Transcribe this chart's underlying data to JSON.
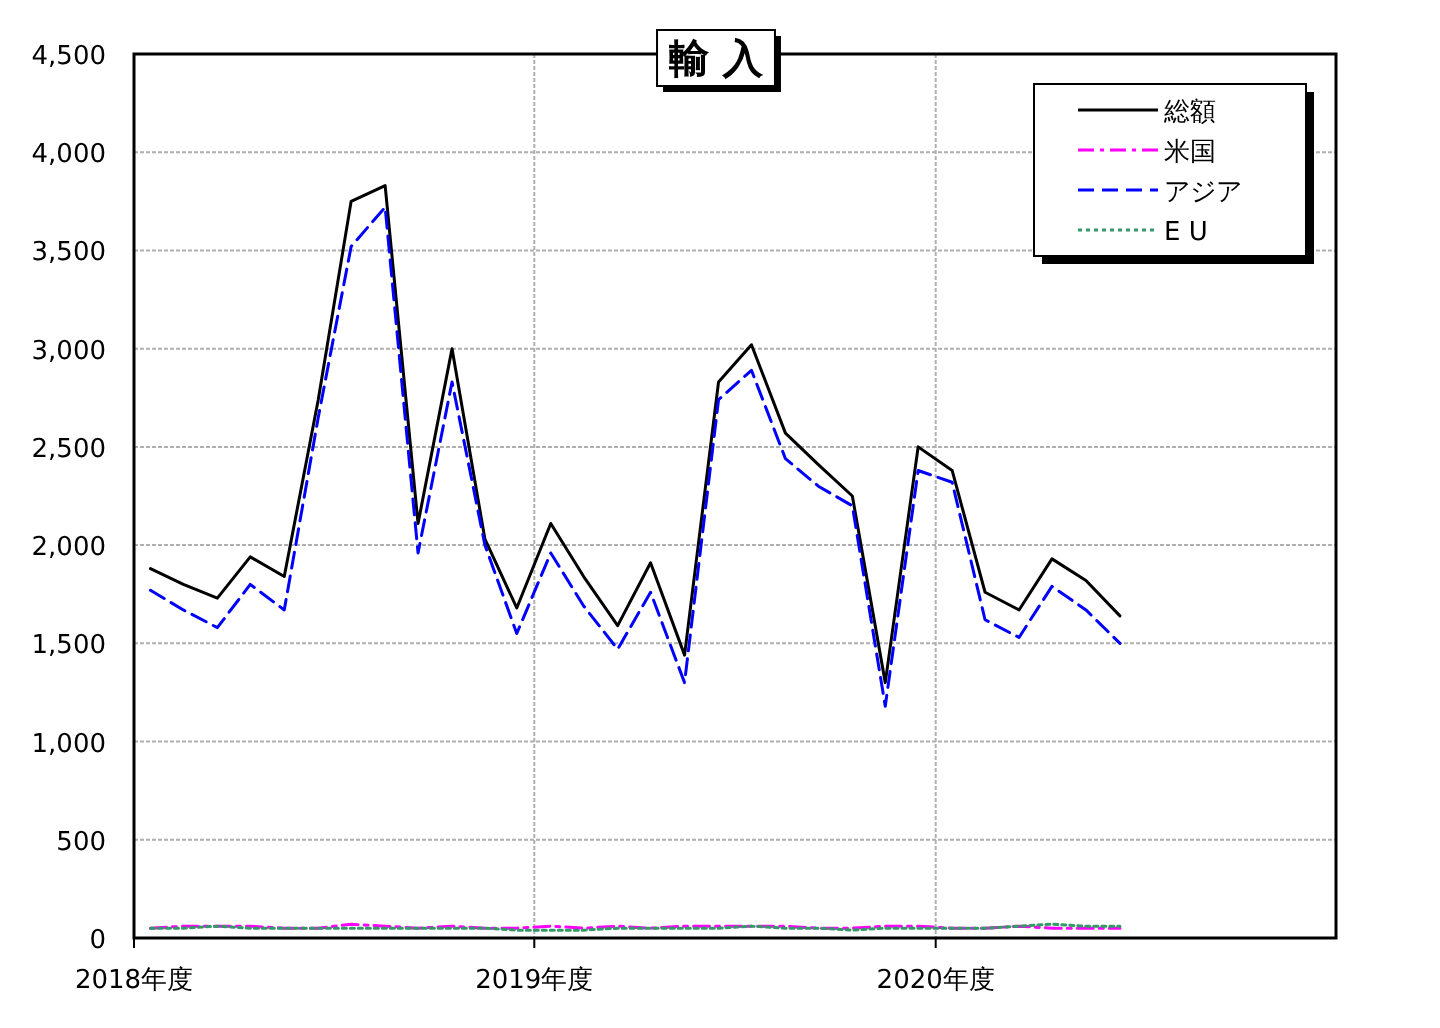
{
  "chart_data": {
    "type": "line",
    "title": "輸 入",
    "x": [
      "2018-04-16",
      "2018-05-16",
      "2018-06-16",
      "2018-07-16",
      "2018-08-16",
      "2018-09-16",
      "2018-10-16",
      "2018-11-16",
      "2018-12-16",
      "2019-01-16",
      "2019-02-15",
      "2019-03-16",
      "2019-04-16",
      "2019-05-16",
      "2019-06-16",
      "2019-07-16",
      "2019-08-16",
      "2019-09-16",
      "2019-10-16",
      "2019-11-16",
      "2019-12-16",
      "2020-01-16",
      "2020-02-15",
      "2020-03-16",
      "2020-04-16",
      "2020-05-16",
      "2020-06-16",
      "2020-07-16",
      "2020-08-16",
      "2020-09-16"
    ],
    "xlim": [
      "2018-04-01",
      "2021-04-01"
    ],
    "xticks": [
      {
        "value": "2018-04-01",
        "label": "2018年度"
      },
      {
        "value": "2019-04-01",
        "label": "2019年度"
      },
      {
        "value": "2020-04-01",
        "label": "2020年度"
      }
    ],
    "ylim": [
      0,
      4500
    ],
    "yticks": [
      0,
      500,
      {
        "value": 1000,
        "label": "1,000"
      },
      {
        "value": 1500,
        "label": "1,500"
      },
      {
        "value": 2000,
        "label": "2,000"
      },
      {
        "value": 2500,
        "label": "2,500"
      },
      {
        "value": 3000,
        "label": "3,000"
      },
      {
        "value": 3500,
        "label": "3,500"
      },
      {
        "value": 4000,
        "label": "4,000"
      },
      {
        "value": 4500,
        "label": "4,500"
      }
    ],
    "grid": true,
    "legend": "top right",
    "marker": "none",
    "series": [
      {
        "name": "総額",
        "color": "#000000",
        "line_style": "solid",
        "values": [
          1880,
          1800,
          1730,
          1940,
          1840,
          2740,
          3750,
          3830,
          2110,
          3000,
          2030,
          1680,
          2110,
          1840,
          1590,
          1910,
          1440,
          2830,
          3020,
          2570,
          2410,
          2250,
          1300,
          2500,
          2380,
          1760,
          1670,
          1930,
          1820,
          1640
        ]
      },
      {
        "name": "米国",
        "color": "#ff00ff",
        "line_style": "dashdot",
        "values": [
          50,
          60,
          60,
          60,
          50,
          50,
          70,
          60,
          50,
          60,
          50,
          50,
          60,
          50,
          60,
          50,
          60,
          60,
          60,
          60,
          50,
          50,
          60,
          60,
          50,
          50,
          60,
          50,
          50,
          50
        ]
      },
      {
        "name": "アジア",
        "color": "#0000ff",
        "line_style": "dashed",
        "values": [
          1770,
          1670,
          1580,
          1800,
          1670,
          2650,
          3520,
          3720,
          1960,
          2830,
          2000,
          1550,
          1960,
          1690,
          1470,
          1760,
          1300,
          2740,
          2890,
          2440,
          2300,
          2200,
          1180,
          2380,
          2320,
          1620,
          1530,
          1790,
          1670,
          1500
        ]
      },
      {
        "name": "E U",
        "color": "#339966",
        "line_style": "dotted",
        "values": [
          50,
          50,
          60,
          50,
          50,
          50,
          50,
          50,
          50,
          50,
          50,
          40,
          40,
          40,
          50,
          50,
          50,
          50,
          60,
          50,
          50,
          40,
          50,
          50,
          50,
          50,
          60,
          70,
          60,
          60
        ]
      }
    ]
  }
}
